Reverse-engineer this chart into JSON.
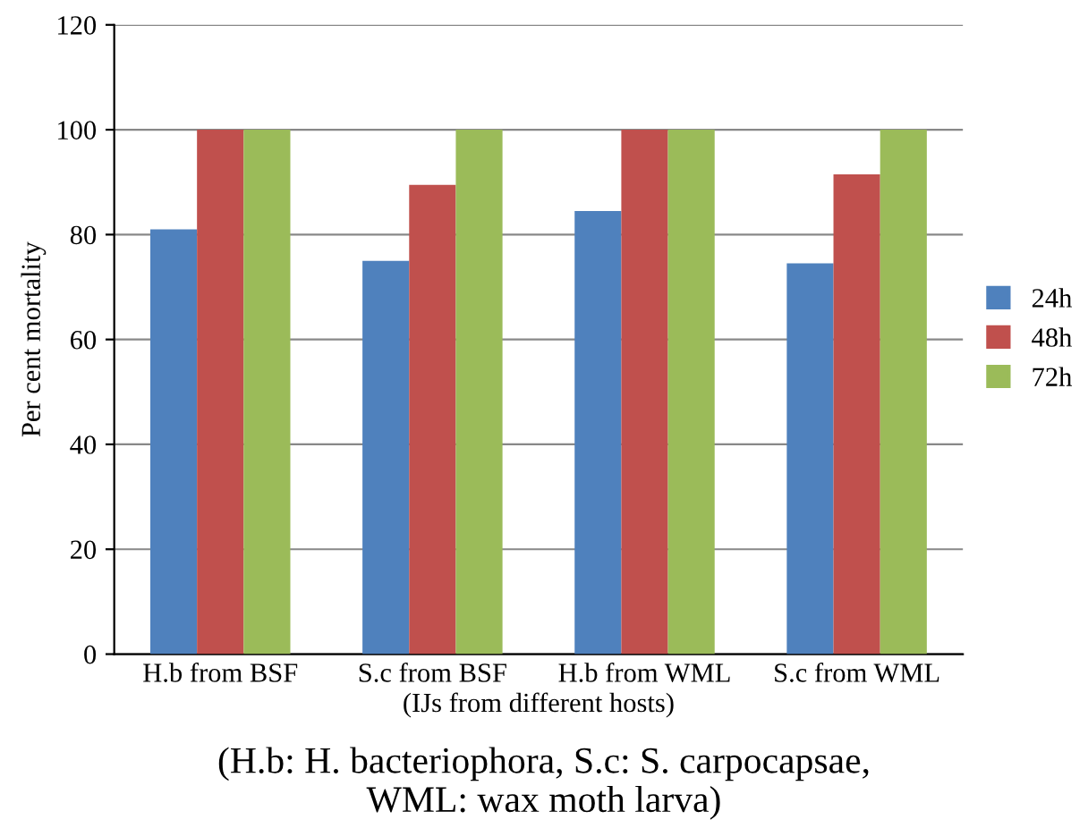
{
  "chart_data": {
    "type": "bar",
    "xlabel": "(IJs from different hosts)",
    "ylabel": "Per cent mortality",
    "categories": [
      "H.b from BSF",
      "S.c from BSF",
      "H.b from WML",
      "S.c from WML"
    ],
    "series": [
      {
        "name": "24h",
        "color": "#4f81bd",
        "values": [
          81,
          75,
          84.5,
          74.5
        ]
      },
      {
        "name": "48h",
        "color": "#c0504d",
        "values": [
          100,
          89.5,
          100,
          91.5
        ]
      },
      {
        "name": "72h",
        "color": "#9bbb59",
        "values": [
          100,
          100,
          100,
          100
        ]
      }
    ],
    "ylim": [
      0,
      120
    ],
    "yticks": [
      0,
      20,
      40,
      60,
      80,
      100,
      120
    ],
    "grid": "y",
    "legend": "right",
    "annotations": [
      "(H.b: H. bacteriophora, S.c: S. carpocapsae,\nWML: wax moth larva)"
    ]
  }
}
